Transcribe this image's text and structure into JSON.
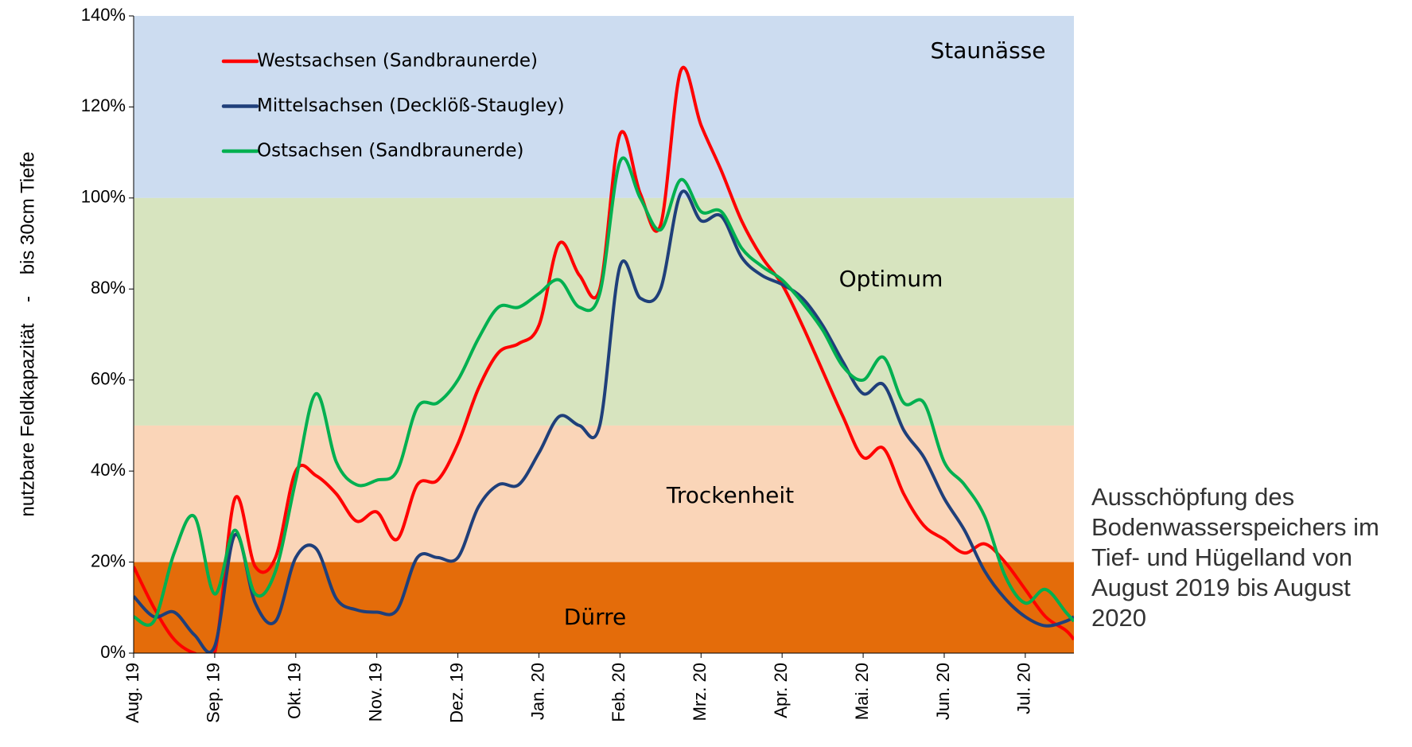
{
  "chart_data": {
    "type": "line",
    "y_label": "nutzbare Feldkapazität    -    bis 30cm Tiefe",
    "caption": "Ausschöpfung des Bodenwasserspeichers im Tief- und Hügelland von August 2019 bis August 2020",
    "zones": [
      {
        "label": "Staunässe",
        "from": 100,
        "to": 140,
        "color": "#ccdcf0"
      },
      {
        "label": "Optimum",
        "from": 50,
        "to": 100,
        "color": "#d7e4bf"
      },
      {
        "label": "Trockenheit",
        "from": 20,
        "to": 50,
        "color": "#fad5b8"
      },
      {
        "label": "Dürre",
        "from": 0,
        "to": 20,
        "color": "#e46c0a"
      }
    ],
    "xlim": [
      0,
      11.6
    ],
    "xticks": [
      {
        "value": 0,
        "label": "Aug. 19"
      },
      {
        "value": 1,
        "label": "Sep. 19"
      },
      {
        "value": 2,
        "label": "Okt. 19"
      },
      {
        "value": 3,
        "label": "Nov. 19"
      },
      {
        "value": 4,
        "label": "Dez. 19"
      },
      {
        "value": 5,
        "label": "Jan. 20"
      },
      {
        "value": 6,
        "label": "Feb. 20"
      },
      {
        "value": 7,
        "label": "Mrz. 20"
      },
      {
        "value": 8,
        "label": "Apr. 20"
      },
      {
        "value": 9,
        "label": "Mai. 20"
      },
      {
        "value": 10,
        "label": "Jun. 20"
      },
      {
        "value": 11,
        "label": "Jul. 20"
      }
    ],
    "ylim": [
      0,
      140
    ],
    "yticks": [
      {
        "value": 0,
        "label": "0%"
      },
      {
        "value": 20,
        "label": "20%"
      },
      {
        "value": 40,
        "label": "40%"
      },
      {
        "value": 60,
        "label": "60%"
      },
      {
        "value": 80,
        "label": "80%"
      },
      {
        "value": 100,
        "label": "100%"
      },
      {
        "value": 120,
        "label": "120%"
      },
      {
        "value": 140,
        "label": "140%"
      }
    ],
    "x": [
      0,
      0.25,
      0.5,
      0.75,
      1,
      1.25,
      1.5,
      1.75,
      2,
      2.25,
      2.5,
      2.75,
      3,
      3.25,
      3.5,
      3.75,
      4,
      4.25,
      4.5,
      4.75,
      5,
      5.25,
      5.5,
      5.75,
      6,
      6.25,
      6.5,
      6.75,
      7,
      7.25,
      7.5,
      7.75,
      8,
      8.25,
      8.5,
      8.75,
      9,
      9.25,
      9.5,
      9.75,
      10,
      10.25,
      10.5,
      10.75,
      11,
      11.25,
      11.5,
      11.6
    ],
    "series": [
      {
        "name": "Westsachsen (Sandbraunerde)",
        "color": "#ff0000",
        "values": [
          19,
          10,
          3,
          0,
          0,
          34,
          19,
          21,
          40,
          39,
          35,
          29,
          31,
          25,
          37,
          38,
          46,
          58,
          66,
          68,
          72,
          90,
          83,
          80,
          114,
          101,
          94,
          128,
          116,
          106,
          95,
          87,
          81,
          72,
          62,
          52,
          43,
          45,
          35,
          28,
          25,
          22,
          24,
          20,
          14,
          8,
          5,
          3
        ]
      },
      {
        "name": "Mittelsachsen (Decklöß-Staugley)",
        "color": "#1f3f7a",
        "values": [
          12.5,
          8,
          9,
          4,
          1.5,
          26,
          11,
          7,
          21,
          23,
          12,
          9.5,
          9,
          9.5,
          21,
          21,
          21,
          32,
          37,
          37,
          44,
          52,
          50,
          50,
          85,
          78,
          80,
          101,
          95,
          96,
          87,
          83,
          81,
          78,
          72,
          64,
          57,
          59,
          49,
          43,
          34,
          27,
          18,
          12,
          8,
          6,
          7,
          8
        ]
      },
      {
        "name": "Ostsachsen (Sandbraunerde)",
        "color": "#00b050",
        "values": [
          8,
          7,
          22,
          30,
          13,
          27,
          13,
          18,
          38,
          57,
          42,
          37,
          38,
          40,
          54,
          55,
          60,
          69,
          76,
          76,
          79,
          82,
          76,
          79,
          108,
          100,
          93,
          104,
          97,
          97,
          89,
          85,
          82,
          77,
          71,
          63,
          60,
          65,
          55,
          55,
          42,
          37,
          30,
          17,
          11,
          14,
          9,
          7
        ]
      }
    ]
  }
}
